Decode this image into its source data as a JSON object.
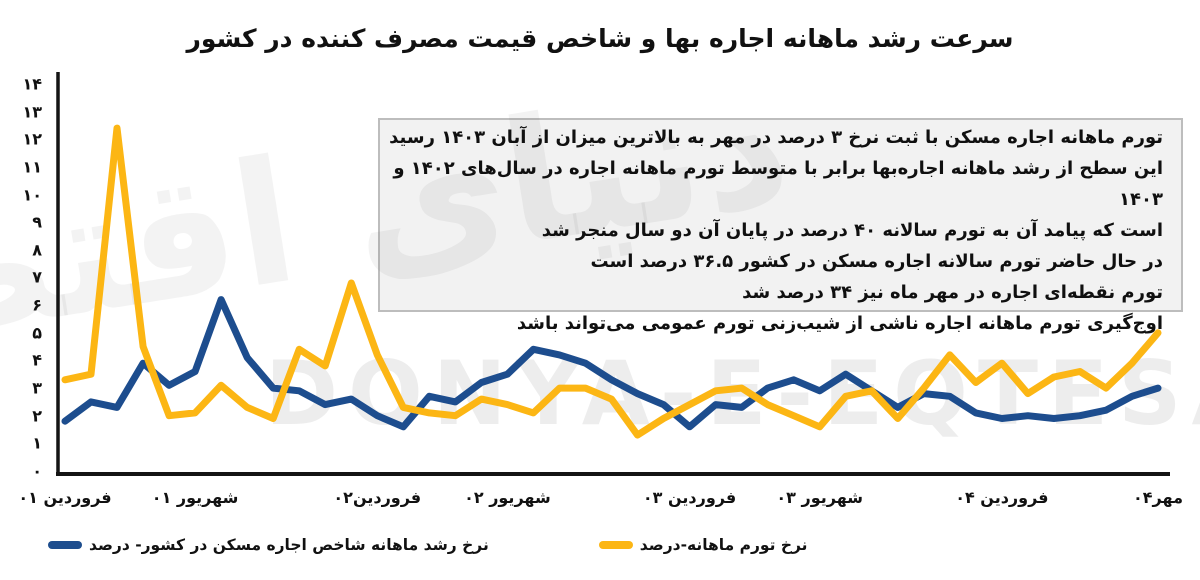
{
  "title": "سرعت رشد ماهانه اجاره بها و شاخص قیمت مصرف کننده در کشور",
  "annotation": {
    "lines": [
      "تورم ماهانه اجاره مسکن با ثبت نرخ ۳ درصد در مهر به بالاترین میزان از آبان ۱۴۰۳ رسید",
      "این سطح از رشد ماهانه اجاره‌بها برابر با متوسط تورم ماهانه اجاره در سال‌های ۱۴۰۲ و ۱۴۰۳",
      "است که پیامد آن به تورم سالانه ۴۰ درصد در پایان آن دو سال منجر شد",
      "در حال حاضر تورم سالانه اجاره مسکن در کشور ۳۶.۵ درصد است",
      "تورم نقطه‌ای اجاره در مهر ماه نیز ۳۴ درصد شد",
      "اوج‌گیری تورم ماهانه اجاره ناشی از شیب‌زنی تورم عمومی می‌تواند باشد"
    ]
  },
  "legend": [
    {
      "label": "نرخ رشد ماهانه شاخص اجاره مسکن در کشور- درصد",
      "color": "#1d4d8e"
    },
    {
      "label": "نرخ تورم ماهانه-درصد",
      "color": "#fcb614"
    }
  ],
  "watermarks": {
    "latin": "DONYA-E-EQTESAD",
    "farsi": "دنیای اقتصاد"
  },
  "chart_data": {
    "type": "line",
    "title": "سرعت رشد ماهانه اجاره بها و شاخص قیمت مصرف کننده در کشور",
    "x_unit": "ماه (فروردین ۱۴۰۱ تا مهر ۱۴۰۴)",
    "ylim": [
      0,
      14
    ],
    "grid": false,
    "legend_position": "bottom",
    "y_ticks": [
      "۰",
      "۱",
      "۲",
      "۳",
      "۴",
      "۵",
      "۶",
      "۷",
      "۸",
      "۹",
      "۱۰",
      "۱۱",
      "۱۲",
      "۱۳",
      "۱۴"
    ],
    "x_ticks": [
      {
        "month_index": 0,
        "label": "فروردین ۰۱"
      },
      {
        "month_index": 5,
        "label": "شهریور ۰۱"
      },
      {
        "month_index": 12,
        "label": "فروردین۰۲"
      },
      {
        "month_index": 17,
        "label": "شهریور ۰۲"
      },
      {
        "month_index": 24,
        "label": "فروردین ۰۳"
      },
      {
        "month_index": 29,
        "label": "شهریور ۰۳"
      },
      {
        "month_index": 36,
        "label": "فروردین ۰۴"
      },
      {
        "month_index": 42,
        "label": "مهر۰۴"
      }
    ],
    "series": [
      {
        "name": "نرخ رشد ماهانه شاخص اجاره مسکن در کشور- درصد",
        "color": "#1d4d8e",
        "values": [
          1.8,
          2.5,
          2.3,
          3.9,
          3.1,
          3.6,
          6.2,
          4.1,
          3.0,
          2.9,
          2.4,
          2.6,
          2.0,
          1.6,
          2.7,
          2.5,
          3.2,
          3.5,
          4.4,
          4.2,
          3.9,
          3.3,
          2.8,
          2.4,
          1.6,
          2.4,
          2.3,
          3.0,
          3.3,
          2.9,
          3.5,
          2.9,
          2.3,
          2.8,
          2.7,
          2.1,
          1.9,
          2.0,
          1.9,
          2.0,
          2.2,
          2.7,
          3.0
        ]
      },
      {
        "name": "نرخ تورم ماهانه-درصد",
        "color": "#fcb614",
        "values": [
          3.3,
          3.5,
          12.4,
          4.5,
          2.0,
          2.1,
          3.1,
          2.3,
          1.9,
          4.4,
          3.8,
          6.8,
          4.2,
          2.3,
          2.1,
          2.0,
          2.6,
          2.4,
          2.1,
          3.0,
          3.0,
          2.6,
          1.3,
          1.9,
          2.4,
          2.9,
          3.0,
          2.4,
          2.0,
          1.6,
          2.7,
          2.9,
          1.9,
          3.0,
          4.2,
          3.2,
          3.9,
          2.8,
          3.4,
          3.6,
          3.0,
          3.9,
          5.0
        ]
      }
    ]
  }
}
